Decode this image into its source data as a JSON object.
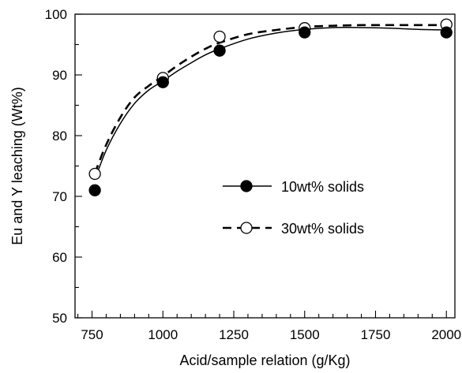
{
  "chart_data": {
    "type": "scatter",
    "title": "",
    "xlabel": "Acid/sample relation (g/Kg)",
    "ylabel": "Eu and Y leaching (Wt%)",
    "xlim": [
      690,
      2030
    ],
    "ylim": [
      50,
      100
    ],
    "xticks": [
      750,
      1000,
      1250,
      1500,
      1750,
      2000
    ],
    "xtick_labels": [
      "750",
      "1000",
      "1250",
      "1500",
      "1750",
      "2000"
    ],
    "yticks": [
      50,
      60,
      70,
      80,
      90,
      100
    ],
    "ytick_labels": [
      "50",
      "60",
      "70",
      "80",
      "90",
      "100"
    ],
    "x_minor_step": 50,
    "y_minor_step": 5,
    "grid": false,
    "legend_position": "center-right",
    "series": [
      {
        "name": "10wt% solids",
        "marker": "filled-circle",
        "line": "solid",
        "x": [
          760,
          1000,
          1200,
          1500,
          2000
        ],
        "y": [
          71.0,
          88.8,
          94.0,
          97.0,
          97.0
        ],
        "curve": {
          "x": [
            760,
            800,
            850,
            900,
            950,
            1000,
            1050,
            1100,
            1150,
            1200,
            1300,
            1400,
            1500,
            1600,
            1700,
            1800,
            1900,
            2000
          ],
          "y": [
            72.8,
            77.6,
            82.0,
            85.3,
            87.5,
            89.0,
            90.6,
            92.0,
            93.3,
            94.3,
            95.9,
            96.9,
            97.5,
            97.8,
            97.8,
            97.7,
            97.5,
            97.4
          ]
        }
      },
      {
        "name": "30wt% solids",
        "marker": "open-circle",
        "line": "dashed",
        "x": [
          760,
          1000,
          1200,
          1500,
          2000
        ],
        "y": [
          73.7,
          89.5,
          96.3,
          97.7,
          98.3
        ],
        "curve": {
          "x": [
            760,
            800,
            850,
            900,
            950,
            1000,
            1050,
            1100,
            1150,
            1200,
            1300,
            1400,
            1500,
            1600,
            1700,
            1800,
            1900,
            2000
          ],
          "y": [
            73.8,
            78.5,
            83.0,
            86.3,
            88.2,
            89.8,
            91.5,
            93.0,
            94.3,
            95.3,
            96.7,
            97.4,
            97.9,
            98.1,
            98.2,
            98.2,
            98.2,
            98.2
          ]
        }
      }
    ]
  }
}
